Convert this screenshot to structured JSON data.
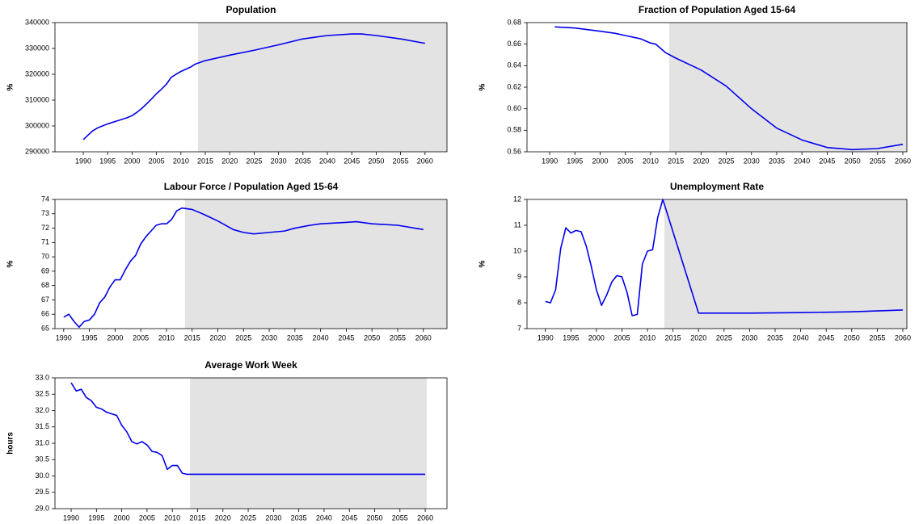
{
  "chart_data": [
    {
      "type": "line",
      "title": "Population",
      "y_label": "%",
      "color": "#0000ee",
      "xlim": [
        1984.2,
        2064.5
      ],
      "ylim": [
        290000,
        340000
      ],
      "shade": [
        2013.5,
        2064.5
      ],
      "xticks": [
        1990,
        1995,
        2000,
        2005,
        2010,
        2015,
        2020,
        2025,
        2030,
        2035,
        2040,
        2045,
        2050,
        2055,
        2060
      ],
      "yticks": [
        290000,
        300000,
        310000,
        320000,
        330000,
        340000
      ],
      "x": [
        1990,
        1991,
        1992,
        1993,
        1995,
        1997,
        1999,
        2000,
        2001,
        2002,
        2003,
        2004,
        2005,
        2006,
        2007,
        2008,
        2009,
        2010,
        2012,
        2013,
        2015,
        2020,
        2025,
        2030,
        2035,
        2040,
        2045,
        2047,
        2050,
        2055,
        2060
      ],
      "values": [
        294700,
        296500,
        298200,
        299300,
        300800,
        302000,
        303200,
        304000,
        305300,
        306800,
        308600,
        310500,
        312500,
        314200,
        316100,
        318800,
        320000,
        321100,
        322800,
        324000,
        325300,
        327400,
        329300,
        331400,
        333700,
        335000,
        335600,
        335600,
        335000,
        333700,
        332000
      ]
    },
    {
      "type": "line",
      "title": "Fraction of Population Aged 15-64",
      "y_label": "%",
      "color": "#0000ee",
      "xlim": [
        1985.5,
        2060.8
      ],
      "ylim": [
        0.56,
        0.68
      ],
      "shade": [
        2013.7,
        2060.8
      ],
      "xticks": [
        1990,
        1995,
        2000,
        2005,
        2010,
        2015,
        2020,
        2025,
        2030,
        2035,
        2040,
        2045,
        2050,
        2055,
        2060
      ],
      "yticks": [
        0.56,
        0.58,
        {
          "value": 0.6,
          "label": "0.60"
        },
        0.62,
        0.64,
        0.66,
        0.68
      ],
      "x": [
        1991,
        1995,
        2000,
        2003,
        2005,
        2007,
        2008,
        2010,
        2011,
        2012,
        2013,
        2015,
        2020,
        2025,
        2030,
        2035,
        2040,
        2045,
        2050,
        2055,
        2060
      ],
      "values": [
        0.676,
        0.675,
        0.672,
        0.67,
        0.668,
        0.666,
        0.665,
        0.661,
        0.66,
        0.656,
        0.652,
        0.647,
        0.636,
        0.621,
        0.6,
        0.582,
        0.571,
        0.564,
        0.562,
        0.563,
        0.567
      ]
    },
    {
      "type": "line",
      "title": "Labour Force / Population Aged 15-64",
      "y_label": "%",
      "color": "#0000ee",
      "xlim": [
        1988.3,
        2064.6
      ],
      "ylim": [
        65,
        74
      ],
      "shade": [
        2013.6,
        2064.6
      ],
      "xticks": [
        1990,
        1995,
        2000,
        2005,
        2010,
        2015,
        2020,
        2025,
        2030,
        2035,
        2040,
        2045,
        2050,
        2055,
        2060
      ],
      "yticks": [
        65,
        66,
        67,
        68,
        69,
        70,
        71,
        72,
        73,
        74
      ],
      "x": [
        1990,
        1991,
        1992,
        1993,
        1994,
        1995,
        1996,
        1997,
        1998,
        1999,
        2000,
        2001,
        2002,
        2003,
        2004,
        2005,
        2006,
        2007,
        2008,
        2009,
        2010,
        2011,
        2012,
        2013,
        2015,
        2017,
        2020,
        2023,
        2025,
        2027,
        2030,
        2033,
        2035,
        2038,
        2040,
        2045,
        2047,
        2050,
        2055,
        2060
      ],
      "values": [
        65.8,
        66.0,
        65.5,
        65.1,
        65.5,
        65.6,
        66.0,
        66.8,
        67.2,
        67.9,
        68.4,
        68.4,
        69.1,
        69.7,
        70.1,
        70.9,
        71.4,
        71.8,
        72.2,
        72.3,
        72.3,
        72.6,
        73.2,
        73.4,
        73.3,
        73.0,
        72.5,
        71.9,
        71.7,
        71.6,
        71.7,
        71.8,
        72.0,
        72.2,
        72.3,
        72.4,
        72.45,
        72.3,
        72.2,
        71.9
      ]
    },
    {
      "type": "line",
      "title": "Unemployment Rate",
      "y_label": "%",
      "color": "#0000ee",
      "xlim": [
        1986.4,
        2060.8
      ],
      "ylim": [
        7,
        12
      ],
      "shade": [
        2013.3,
        2060.8
      ],
      "xticks": [
        1990,
        1995,
        2000,
        2005,
        2010,
        2015,
        2020,
        2025,
        2030,
        2035,
        2040,
        2045,
        2050,
        2055,
        2060
      ],
      "yticks": [
        7,
        8,
        9,
        10,
        11,
        12
      ],
      "x": [
        1990,
        1991,
        1992,
        1993,
        1994,
        1995,
        1996,
        1997,
        1998,
        1999,
        2000,
        2001,
        2002,
        2003,
        2004,
        2005,
        2006,
        2007,
        2008,
        2009,
        2010,
        2011,
        2012,
        2013,
        2020,
        2030,
        2040,
        2050,
        2060
      ],
      "values": [
        8.05,
        8.0,
        8.5,
        10.1,
        10.9,
        10.7,
        10.8,
        10.75,
        10.2,
        9.4,
        8.5,
        7.9,
        8.3,
        8.8,
        9.05,
        9.0,
        8.4,
        7.5,
        7.55,
        9.5,
        10.0,
        10.05,
        11.3,
        12.0,
        7.6,
        7.6,
        7.62,
        7.65,
        7.72
      ]
    },
    {
      "type": "line",
      "title": "Average Work Week",
      "y_label": "hours",
      "color": "#0000ee",
      "xlim": [
        1986.8,
        2064.3
      ],
      "ylim": [
        29,
        33
      ],
      "shade": [
        2013.5,
        2060.3
      ],
      "xticks": [
        1990,
        1995,
        2000,
        2005,
        2010,
        2015,
        2020,
        2025,
        2030,
        2035,
        2040,
        2045,
        2050,
        2055,
        2060
      ],
      "yticks": [
        {
          "value": 29,
          "label": "29.0"
        },
        29.5,
        {
          "value": 30,
          "label": "30.0"
        },
        30.5,
        {
          "value": 31,
          "label": "31.0"
        },
        31.5,
        {
          "value": 32,
          "label": "32.0"
        },
        32.5,
        {
          "value": 33,
          "label": "33.0"
        }
      ],
      "x": [
        1990,
        1991,
        1992,
        1993,
        1994,
        1995,
        1996,
        1997,
        1998,
        1999,
        2000,
        2001,
        2002,
        2003,
        2004,
        2005,
        2006,
        2007,
        2008,
        2009,
        2010,
        2011,
        2012,
        2013,
        2060
      ],
      "values": [
        32.85,
        32.6,
        32.65,
        32.4,
        32.3,
        32.1,
        32.05,
        31.95,
        31.9,
        31.85,
        31.55,
        31.35,
        31.05,
        30.98,
        31.05,
        30.95,
        30.75,
        30.72,
        30.62,
        30.2,
        30.32,
        30.32,
        30.08,
        30.05,
        30.05
      ]
    }
  ]
}
